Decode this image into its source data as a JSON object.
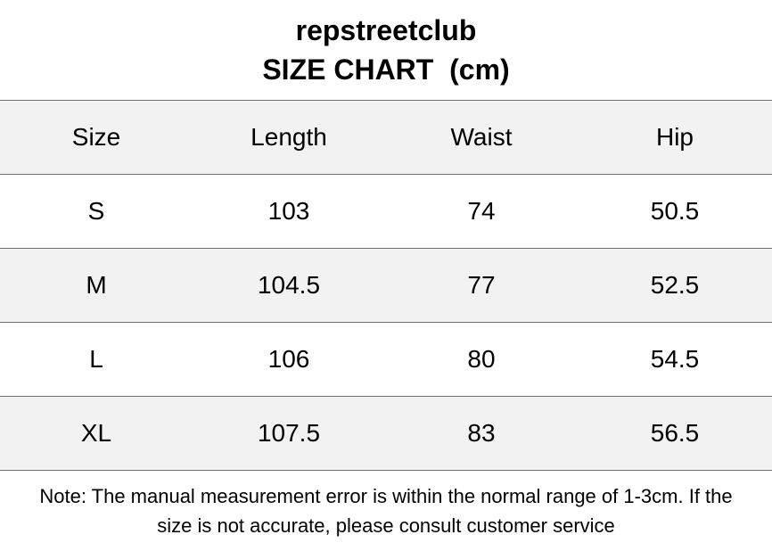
{
  "header": {
    "brand": "repstreetclub",
    "title": "SIZE CHART  (cm)"
  },
  "table": {
    "columns": [
      "Size",
      "Length",
      "Waist",
      "Hip"
    ],
    "rows": [
      [
        "S",
        "103",
        "74",
        "50.5"
      ],
      [
        "M",
        "104.5",
        "77",
        "52.5"
      ],
      [
        "L",
        "106",
        "80",
        "54.5"
      ],
      [
        "XL",
        "107.5",
        "83",
        "56.5"
      ]
    ]
  },
  "footer": {
    "note_line1": "Note: The manual measurement error is within the normal range of 1-3cm. If the",
    "note_line2": "size is not accurate, please consult customer service"
  },
  "colors": {
    "shaded_row": "#f2f2f2",
    "border": "#6f6f6f",
    "text": "#000000"
  }
}
